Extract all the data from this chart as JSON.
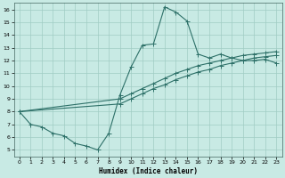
{
  "xlabel": "Humidex (Indice chaleur)",
  "xlim": [
    -0.5,
    23.5
  ],
  "ylim": [
    4.5,
    16.5
  ],
  "xticks": [
    0,
    1,
    2,
    3,
    4,
    5,
    6,
    7,
    8,
    9,
    10,
    11,
    12,
    13,
    14,
    15,
    16,
    17,
    18,
    19,
    20,
    21,
    22,
    23
  ],
  "yticks": [
    5,
    6,
    7,
    8,
    9,
    10,
    11,
    12,
    13,
    14,
    15,
    16
  ],
  "bg_color": "#c8eae4",
  "grid_color": "#a0ccc4",
  "line_color": "#2d7068",
  "line1_x": [
    0,
    1,
    2,
    3,
    4,
    5,
    6,
    7,
    8,
    9,
    10,
    11,
    12,
    13,
    14,
    15,
    16,
    17,
    18,
    19,
    20,
    21,
    22,
    23
  ],
  "line1_y": [
    8.0,
    7.0,
    6.8,
    6.3,
    6.1,
    5.5,
    5.3,
    5.0,
    6.3,
    9.3,
    11.5,
    13.2,
    13.3,
    16.2,
    15.8,
    15.1,
    12.5,
    12.2,
    12.5,
    12.2,
    12.0,
    12.0,
    12.1,
    11.8
  ],
  "line2_x": [
    0,
    9,
    10,
    11,
    12,
    13,
    14,
    15,
    16,
    17,
    18,
    19,
    20,
    21,
    22,
    23
  ],
  "line2_y": [
    8.0,
    9.0,
    9.4,
    9.8,
    10.2,
    10.6,
    11.0,
    11.3,
    11.6,
    11.8,
    12.0,
    12.2,
    12.4,
    12.5,
    12.6,
    12.7
  ],
  "line3_x": [
    0,
    9,
    10,
    11,
    12,
    13,
    14,
    15,
    16,
    17,
    18,
    19,
    20,
    21,
    22,
    23
  ],
  "line3_y": [
    8.0,
    8.6,
    9.0,
    9.4,
    9.8,
    10.1,
    10.5,
    10.8,
    11.1,
    11.3,
    11.6,
    11.8,
    12.0,
    12.2,
    12.3,
    12.4
  ]
}
